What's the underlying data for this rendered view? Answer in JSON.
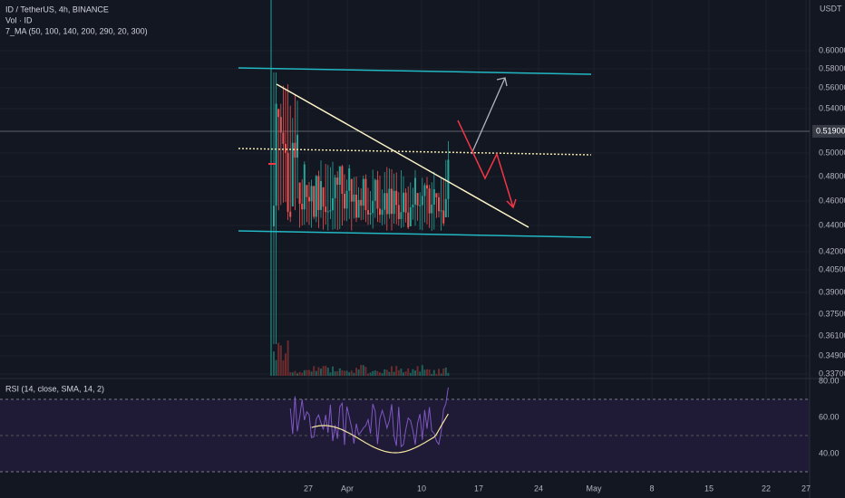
{
  "header": {
    "symbol_line": "ID / TetherUS, 4h, BINANCE",
    "volume_line": "Vol · ID",
    "ma_line": "7_MA (50, 100, 140, 200, 290, 20, 300)"
  },
  "price_axis": {
    "currency": "USDT",
    "labels": [
      "0.60000",
      "0.58000",
      "0.56000",
      "0.54000",
      "0.50000",
      "0.48000",
      "0.46000",
      "0.44000",
      "0.42000",
      "0.40500",
      "0.39000",
      "0.37500",
      "0.36100",
      "0.34900",
      "0.33700"
    ],
    "last_price": "0.51900"
  },
  "rsi": {
    "label": "RSI (14, close, SMA, 14, 2)",
    "axis_labels": [
      "80.00",
      "60.00",
      "40.00"
    ]
  },
  "time_axis": {
    "labels": [
      "27",
      "Apr",
      "10",
      "17",
      "24",
      "May",
      "8",
      "15",
      "22",
      "27"
    ]
  }
}
